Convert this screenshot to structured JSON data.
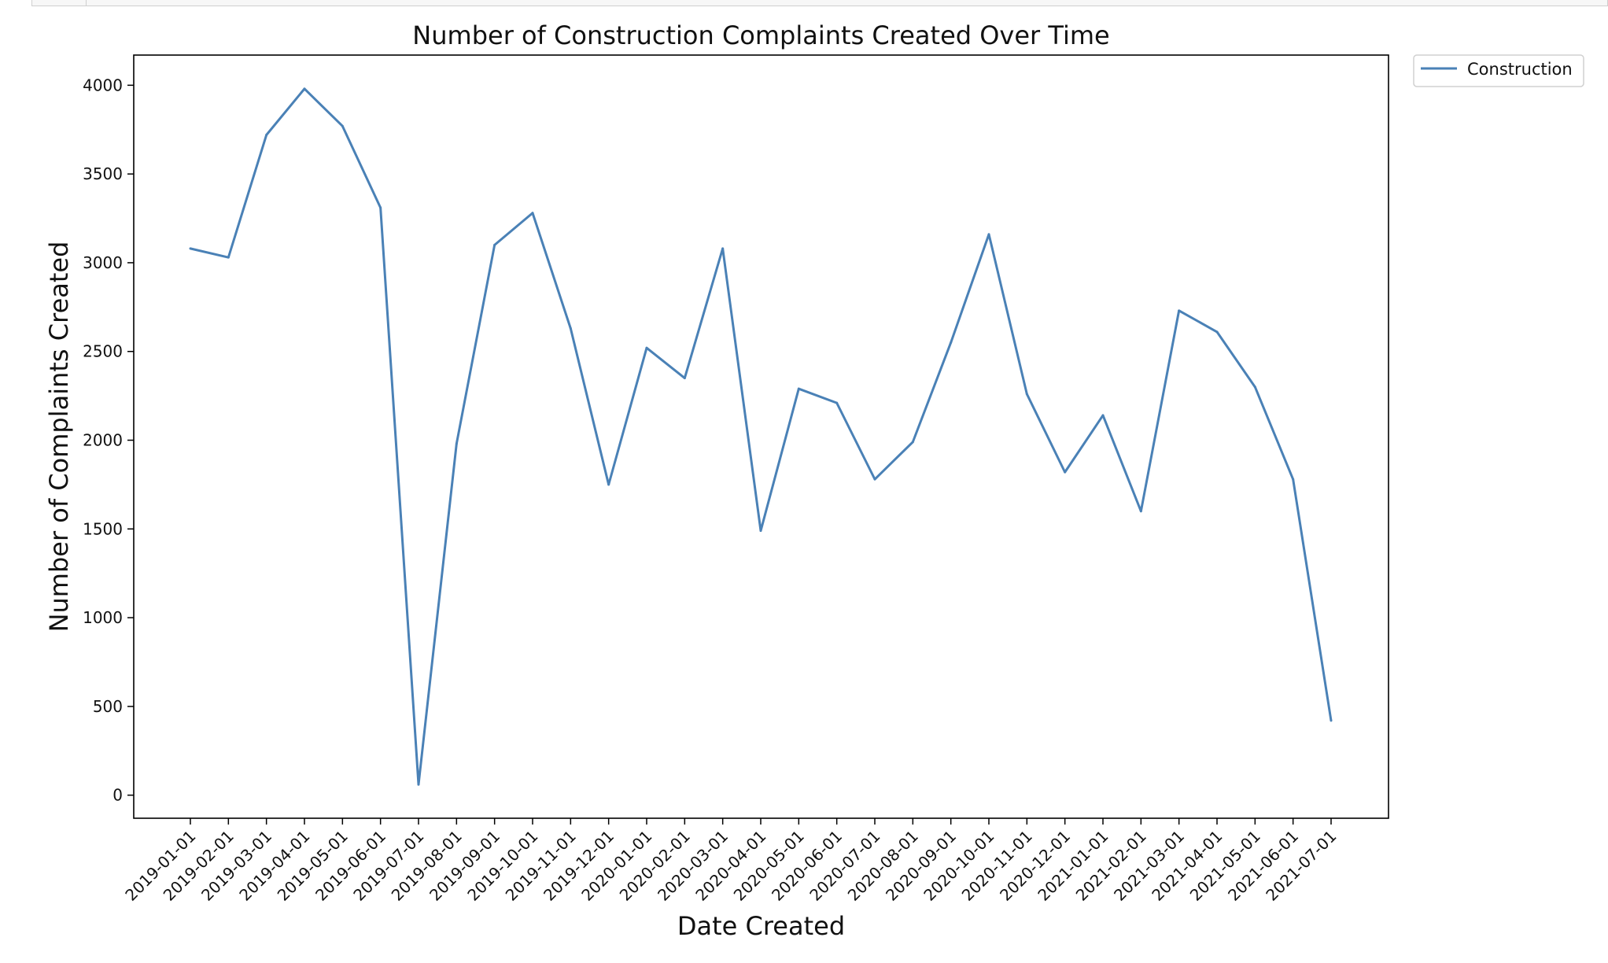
{
  "chart_data": {
    "type": "line",
    "title": "Number of Construction Complaints Created Over Time",
    "xlabel": "Date Created",
    "ylabel": "Number of Complaints Created",
    "ylim": [
      -130,
      4170
    ],
    "yticks": [
      0,
      500,
      1000,
      1500,
      2000,
      2500,
      3000,
      3500,
      4000
    ],
    "grid": false,
    "legend_position": "outside-top-right",
    "categories": [
      "2019-01-01",
      "2019-02-01",
      "2019-03-01",
      "2019-04-01",
      "2019-05-01",
      "2019-06-01",
      "2019-07-01",
      "2019-08-01",
      "2019-09-01",
      "2019-10-01",
      "2019-11-01",
      "2019-12-01",
      "2020-01-01",
      "2020-02-01",
      "2020-03-01",
      "2020-04-01",
      "2020-05-01",
      "2020-06-01",
      "2020-07-01",
      "2020-08-01",
      "2020-09-01",
      "2020-10-01",
      "2020-11-01",
      "2020-12-01",
      "2021-01-01",
      "2021-02-01",
      "2021-03-01",
      "2021-04-01",
      "2021-05-01",
      "2021-06-01",
      "2021-07-01"
    ],
    "series": [
      {
        "name": "Construction",
        "color": "#4a81b6",
        "values": [
          3080,
          3030,
          3720,
          3980,
          3770,
          3310,
          60,
          1980,
          3100,
          3280,
          2630,
          1750,
          2520,
          2350,
          3080,
          1490,
          2290,
          2210,
          1780,
          1990,
          2550,
          3160,
          2260,
          1820,
          2140,
          1600,
          2730,
          2610,
          2300,
          1780,
          420
        ]
      }
    ]
  }
}
